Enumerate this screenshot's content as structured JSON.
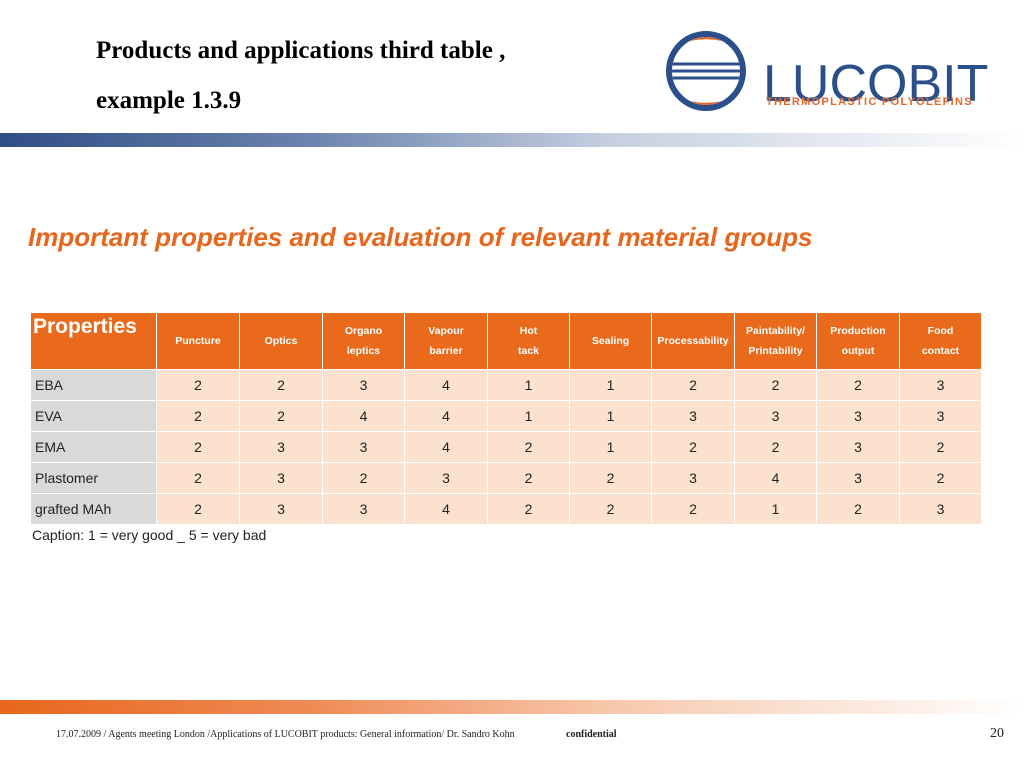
{
  "slide": {
    "title_line1": "Products and applications third table ,",
    "title_line2": "example 1.3.9"
  },
  "logo": {
    "name": "LUCOBIT",
    "tagline": "THERMOPLASTIC POLYOLEFINS",
    "colors": {
      "blue": "#2b4f8a",
      "orange": "#e2672a"
    }
  },
  "heading": "Important properties and evaluation of relevant material groups",
  "table": {
    "corner_label": "Properties",
    "columns": [
      [
        "Puncture"
      ],
      [
        "Optics"
      ],
      [
        "Organo",
        "leptics"
      ],
      [
        "Vapour",
        "barrier"
      ],
      [
        "Hot",
        "tack"
      ],
      [
        "Sealing"
      ],
      [
        "Processability"
      ],
      [
        "Paintability/",
        "Printability"
      ],
      [
        "Production",
        "output"
      ],
      [
        "Food",
        "contact"
      ]
    ],
    "rows": [
      {
        "name": "EBA",
        "values": [
          "2",
          "2",
          "3",
          "4",
          "1",
          "1",
          "2",
          "2",
          "2",
          "3"
        ]
      },
      {
        "name": "EVA",
        "values": [
          "2",
          "2",
          "4",
          "4",
          "1",
          "1",
          "3",
          "3",
          "3",
          "3"
        ]
      },
      {
        "name": "EMA",
        "values": [
          "2",
          "3",
          "3",
          "4",
          "2",
          "1",
          "2",
          "2",
          "3",
          "2"
        ]
      },
      {
        "name": "Plastomer",
        "values": [
          "2",
          "3",
          "2",
          "3",
          "2",
          "2",
          "3",
          "4",
          "3",
          "2"
        ]
      },
      {
        "name": "grafted MAh",
        "values": [
          "2",
          "3",
          "3",
          "4",
          "2",
          "2",
          "2",
          "1",
          "2",
          "3"
        ]
      }
    ],
    "colors": {
      "header": "#ea6a1b",
      "cell": "#fde1cf",
      "name_cell": "#d9d9d9"
    }
  },
  "caption": "Caption: 1 = very good _ 5 = very bad",
  "footer": {
    "text": "17.07.2009 / Agents meeting London /Applications of LUCOBIT products: General information/ Dr. Sandro Kohn",
    "confidential": "confidential",
    "page_number": "20"
  }
}
